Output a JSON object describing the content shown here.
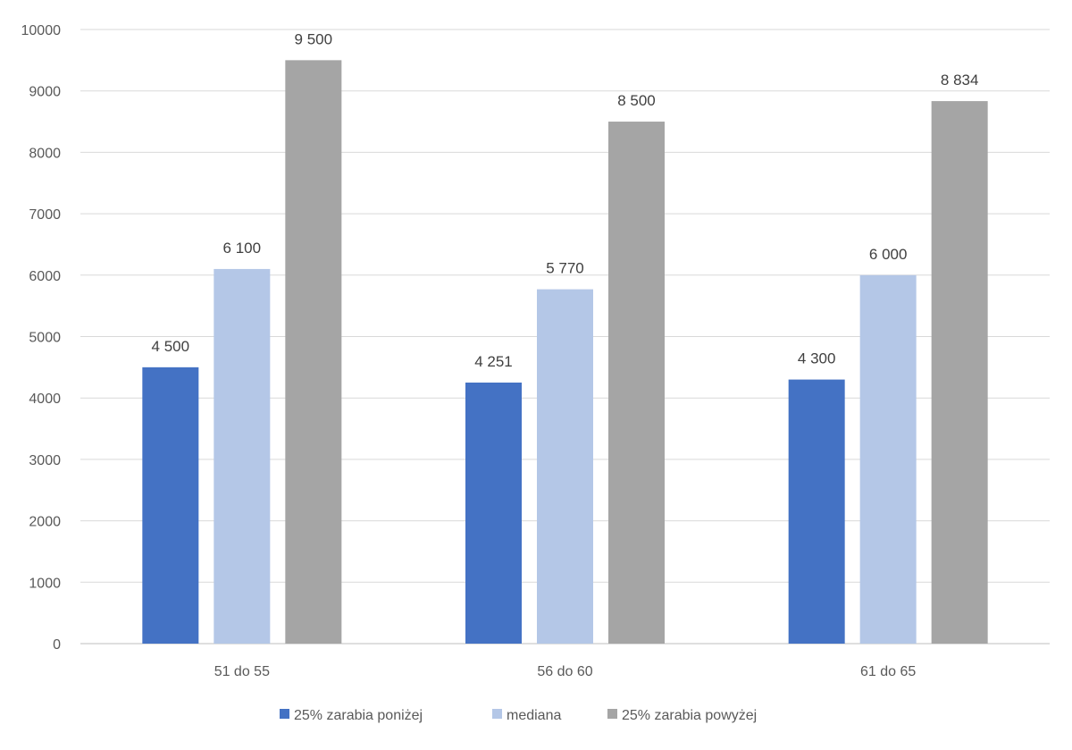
{
  "chart_data": {
    "type": "bar",
    "categories": [
      "51 do 55",
      "56 do 60",
      "61 do 65"
    ],
    "series": [
      {
        "name": "25% zarabia poniżej",
        "color": "#4472C4",
        "values": [
          4500,
          4251,
          4300
        ],
        "labels": [
          "4 500",
          "4 251",
          "4 300"
        ]
      },
      {
        "name": "mediana",
        "color": "#B4C7E7",
        "values": [
          6100,
          5770,
          6000
        ],
        "labels": [
          "6 100",
          "5 770",
          "6 000"
        ]
      },
      {
        "name": "25% zarabia powyżej",
        "color": "#A5A5A5",
        "values": [
          9500,
          8500,
          8834
        ],
        "labels": [
          "9 500",
          "8 500",
          "8 834"
        ]
      }
    ],
    "yticks": [
      "0",
      "1000",
      "2000",
      "3000",
      "4000",
      "5000",
      "6000",
      "7000",
      "8000",
      "9000",
      "10000"
    ],
    "ylim": [
      0,
      10000
    ],
    "grid": true,
    "legend_position": "bottom",
    "title": "",
    "xlabel": "",
    "ylabel": ""
  }
}
